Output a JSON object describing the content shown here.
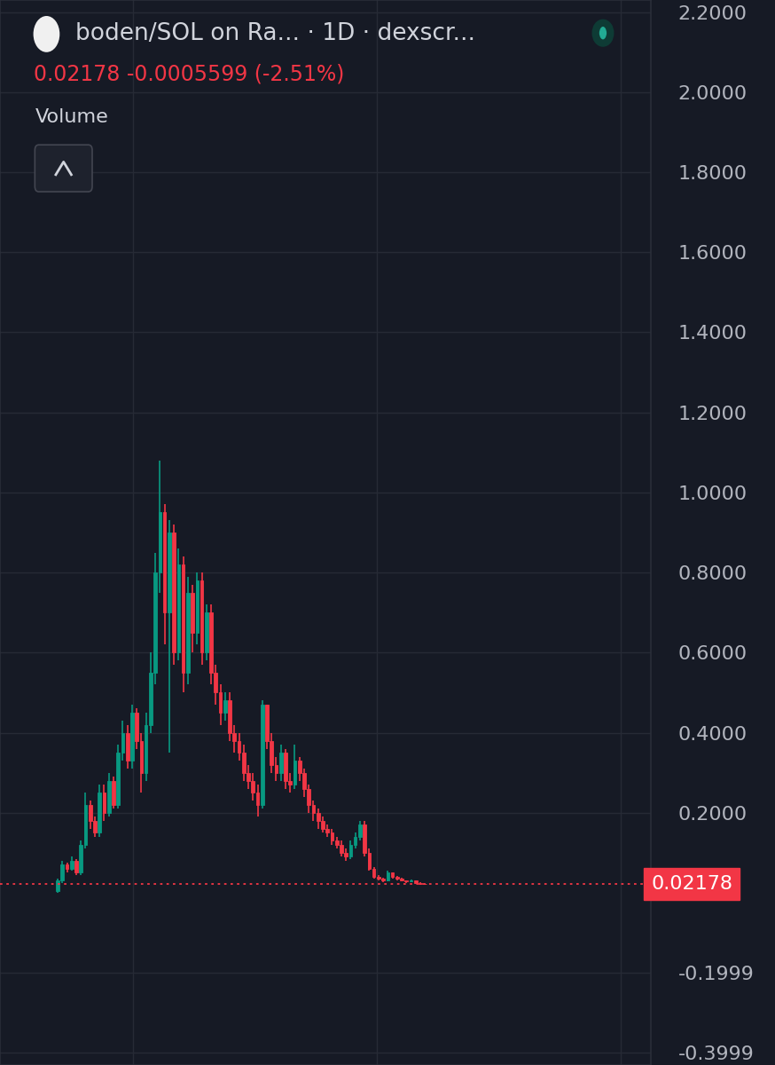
{
  "chart_data": {
    "type": "candlestick",
    "title": "boden/SOL on Ra... · 1D · dexscr...",
    "subtitle": "0.02178 -0.0005599 (-2.51%)",
    "annotations": [
      "Volume"
    ],
    "categories": [
      null,
      null,
      null,
      null,
      null,
      null,
      null,
      null,
      null,
      null,
      null,
      null,
      null,
      null,
      null,
      null,
      null,
      null,
      null,
      null,
      null,
      null,
      null,
      null,
      null,
      null,
      null,
      null,
      null,
      null,
      null,
      null,
      null,
      null,
      null,
      null,
      null,
      null,
      null,
      null,
      null,
      null,
      null,
      null,
      null,
      null,
      null,
      null,
      null,
      null,
      null,
      null,
      null,
      null,
      null,
      null,
      null,
      null,
      null,
      null,
      null,
      null,
      null,
      null,
      null,
      null,
      null,
      null,
      null,
      null,
      null,
      null,
      null,
      null,
      null,
      null,
      null,
      null,
      null,
      null
    ],
    "open": [
      0.005,
      0.03,
      0.07,
      0.06,
      0.08,
      0.05,
      0.12,
      0.22,
      0.18,
      0.15,
      0.25,
      0.2,
      0.28,
      0.22,
      0.35,
      0.4,
      0.33,
      0.45,
      0.38,
      0.3,
      0.42,
      0.55,
      0.8,
      0.95,
      0.7,
      0.9,
      0.6,
      0.82,
      0.55,
      0.75,
      0.65,
      0.78,
      0.6,
      0.7,
      0.55,
      0.5,
      0.45,
      0.48,
      0.4,
      0.38,
      0.35,
      0.3,
      0.28,
      0.25,
      0.22,
      0.47,
      0.38,
      0.32,
      0.3,
      0.35,
      0.28,
      0.27,
      0.33,
      0.3,
      0.26,
      0.22,
      0.2,
      0.18,
      0.16,
      0.15,
      0.13,
      0.12,
      0.1,
      0.09,
      0.12,
      0.14,
      0.17,
      0.1,
      0.06,
      0.04,
      0.035,
      0.03,
      0.05,
      0.04,
      0.035,
      0.03,
      0.028,
      0.03,
      0.025,
      0.022
    ],
    "high": [
      0.035,
      0.08,
      0.075,
      0.09,
      0.085,
      0.13,
      0.25,
      0.23,
      0.19,
      0.27,
      0.27,
      0.3,
      0.29,
      0.37,
      0.43,
      0.42,
      0.47,
      0.46,
      0.4,
      0.45,
      0.6,
      0.85,
      1.08,
      0.97,
      0.93,
      0.92,
      0.86,
      0.84,
      0.79,
      0.77,
      0.8,
      0.8,
      0.72,
      0.72,
      0.57,
      0.52,
      0.5,
      0.5,
      0.42,
      0.4,
      0.37,
      0.32,
      0.3,
      0.27,
      0.48,
      0.47,
      0.4,
      0.34,
      0.37,
      0.36,
      0.3,
      0.37,
      0.34,
      0.31,
      0.27,
      0.23,
      0.21,
      0.19,
      0.17,
      0.16,
      0.14,
      0.13,
      0.11,
      0.13,
      0.15,
      0.18,
      0.18,
      0.11,
      0.065,
      0.045,
      0.038,
      0.055,
      0.052,
      0.042,
      0.037,
      0.032,
      0.033,
      0.031,
      0.026,
      0.024
    ],
    "low": [
      0.0,
      0.025,
      0.05,
      0.055,
      0.045,
      0.045,
      0.11,
      0.16,
      0.14,
      0.14,
      0.18,
      0.19,
      0.21,
      0.21,
      0.33,
      0.31,
      0.31,
      0.36,
      0.25,
      0.28,
      0.4,
      0.52,
      0.75,
      0.62,
      0.35,
      0.57,
      0.58,
      0.5,
      0.52,
      0.6,
      0.62,
      0.57,
      0.58,
      0.52,
      0.47,
      0.42,
      0.43,
      0.38,
      0.35,
      0.33,
      0.28,
      0.26,
      0.23,
      0.19,
      0.21,
      0.36,
      0.3,
      0.28,
      0.28,
      0.26,
      0.25,
      0.26,
      0.28,
      0.24,
      0.2,
      0.18,
      0.16,
      0.15,
      0.14,
      0.12,
      0.11,
      0.09,
      0.08,
      0.085,
      0.11,
      0.13,
      0.09,
      0.055,
      0.035,
      0.03,
      0.027,
      0.028,
      0.036,
      0.032,
      0.028,
      0.025,
      0.026,
      0.023,
      0.02,
      0.019
    ],
    "close": [
      0.03,
      0.07,
      0.06,
      0.08,
      0.05,
      0.12,
      0.22,
      0.18,
      0.15,
      0.25,
      0.2,
      0.28,
      0.22,
      0.35,
      0.4,
      0.33,
      0.45,
      0.38,
      0.3,
      0.42,
      0.55,
      0.8,
      0.95,
      0.7,
      0.9,
      0.6,
      0.82,
      0.55,
      0.75,
      0.65,
      0.78,
      0.6,
      0.7,
      0.55,
      0.5,
      0.45,
      0.48,
      0.4,
      0.38,
      0.35,
      0.3,
      0.28,
      0.25,
      0.22,
      0.47,
      0.38,
      0.32,
      0.3,
      0.35,
      0.28,
      0.27,
      0.33,
      0.3,
      0.26,
      0.22,
      0.2,
      0.18,
      0.16,
      0.15,
      0.13,
      0.12,
      0.1,
      0.09,
      0.12,
      0.14,
      0.17,
      0.1,
      0.06,
      0.04,
      0.035,
      0.03,
      0.05,
      0.04,
      0.035,
      0.03,
      0.028,
      0.03,
      0.025,
      0.022,
      0.02178
    ],
    "color": {
      "up": "#089981",
      "down": "#f23645"
    },
    "last_price": {
      "value": 0.02178,
      "label": "0.02178"
    },
    "xlim": [
      -12.4,
      127.6
    ],
    "xticks": [
      16.2,
      68.6,
      121.0
    ],
    "ylim": [
      -0.43,
      2.23
    ],
    "yticks": [
      {
        "value": -0.3999,
        "label": "-0.3999"
      },
      {
        "value": -0.1999,
        "label": "-0.1999"
      },
      {
        "value": 0.2,
        "label": "0.2000"
      },
      {
        "value": 0.4,
        "label": "0.4000"
      },
      {
        "value": 0.6,
        "label": "0.6000"
      },
      {
        "value": 0.8,
        "label": "0.8000"
      },
      {
        "value": 1.0,
        "label": "1.0000"
      },
      {
        "value": 1.2,
        "label": "1.2000"
      },
      {
        "value": 1.4,
        "label": "1.4000"
      },
      {
        "value": 1.6,
        "label": "1.6000"
      },
      {
        "value": 1.8,
        "label": "1.8000"
      },
      {
        "value": 2.0,
        "label": "2.0000"
      },
      {
        "value": 2.2,
        "label": "2.2000"
      }
    ],
    "grid": true,
    "tick_labels": "y"
  }
}
